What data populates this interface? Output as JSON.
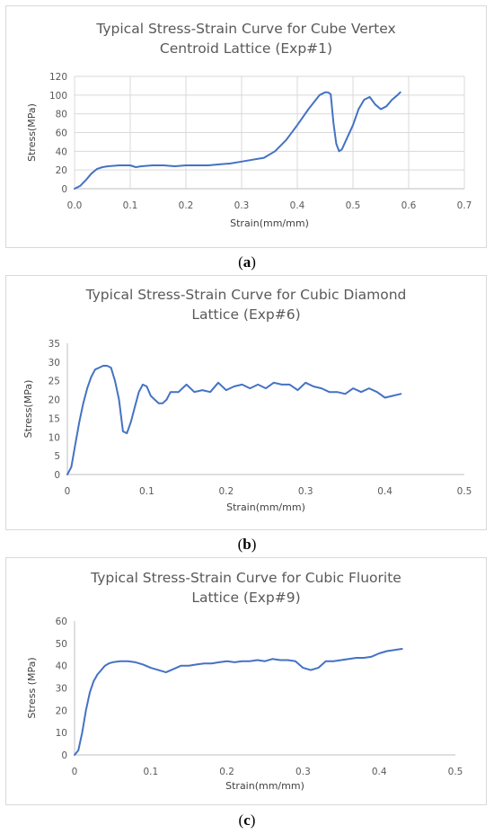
{
  "chart_data": [
    {
      "type": "line",
      "title_lines": [
        "Typical Stress-Strain Curve for Cube Vertex",
        "Centroid Lattice (Exp#1)"
      ],
      "xlabel": "Strain(mm/mm)",
      "ylabel": "Stress(MPa)",
      "xlim": [
        0,
        0.7
      ],
      "ylim": [
        0,
        120
      ],
      "xticks": [
        "0.0",
        "0.1",
        "0.2",
        "0.3",
        "0.4",
        "0.5",
        "0.6",
        "0.7"
      ],
      "yticks": [
        "0",
        "20",
        "40",
        "60",
        "80",
        "100",
        "120"
      ],
      "grid": true,
      "color": "#4472c4",
      "x": [
        0,
        0.01,
        0.02,
        0.03,
        0.04,
        0.05,
        0.06,
        0.08,
        0.1,
        0.11,
        0.12,
        0.14,
        0.16,
        0.18,
        0.2,
        0.22,
        0.24,
        0.26,
        0.28,
        0.3,
        0.32,
        0.34,
        0.36,
        0.38,
        0.4,
        0.42,
        0.44,
        0.45,
        0.455,
        0.46,
        0.465,
        0.47,
        0.475,
        0.48,
        0.49,
        0.5,
        0.51,
        0.52,
        0.53,
        0.54,
        0.55,
        0.56,
        0.57,
        0.58,
        0.585
      ],
      "y": [
        0,
        3,
        9,
        16,
        21,
        23,
        24,
        25,
        25,
        23,
        24,
        25,
        25,
        24,
        25,
        25,
        25,
        26,
        27,
        29,
        31,
        33,
        40,
        52,
        68,
        85,
        100,
        103,
        103,
        101,
        70,
        48,
        40,
        42,
        55,
        68,
        85,
        95,
        98,
        90,
        85,
        88,
        95,
        100,
        103
      ]
    },
    {
      "type": "line",
      "title_lines": [
        "Typical Stress-Strain Curve for Cubic Diamond",
        "Lattice (Exp#6)"
      ],
      "xlabel": "Strain(mm/mm)",
      "ylabel": "Stress(MPa)",
      "xlim": [
        0,
        0.5
      ],
      "ylim": [
        0,
        35
      ],
      "xticks": [
        "0",
        "0.1",
        "0.2",
        "0.3",
        "0.4",
        "0.5"
      ],
      "yticks": [
        "0",
        "5",
        "10",
        "15",
        "20",
        "25",
        "30",
        "35"
      ],
      "grid": false,
      "color": "#4472c4",
      "x": [
        0,
        0.005,
        0.01,
        0.015,
        0.02,
        0.025,
        0.03,
        0.035,
        0.04,
        0.045,
        0.05,
        0.055,
        0.06,
        0.065,
        0.07,
        0.075,
        0.08,
        0.085,
        0.09,
        0.095,
        0.1,
        0.105,
        0.11,
        0.115,
        0.12,
        0.125,
        0.13,
        0.14,
        0.15,
        0.16,
        0.17,
        0.18,
        0.19,
        0.2,
        0.21,
        0.22,
        0.23,
        0.24,
        0.25,
        0.26,
        0.27,
        0.28,
        0.29,
        0.3,
        0.31,
        0.32,
        0.33,
        0.34,
        0.35,
        0.36,
        0.37,
        0.38,
        0.39,
        0.4,
        0.41,
        0.42
      ],
      "y": [
        0,
        2,
        8,
        14,
        19,
        23,
        26,
        28,
        28.5,
        29,
        29,
        28.5,
        25,
        20,
        11.5,
        11,
        14,
        18,
        22,
        24,
        23.5,
        21,
        20,
        19,
        19,
        20,
        22,
        22,
        24,
        22,
        22.5,
        22,
        24.5,
        22.5,
        23.5,
        24,
        23,
        24,
        23,
        24.5,
        24,
        24,
        22.5,
        24.5,
        23.5,
        23,
        22,
        22,
        21.5,
        23,
        22,
        23,
        22,
        20.5,
        21,
        21.5
      ]
    },
    {
      "type": "line",
      "title_lines": [
        "Typical Stress-Strain Curve for Cubic Fluorite",
        "Lattice (Exp#9)"
      ],
      "xlabel": "Strain(mm/mm)",
      "ylabel": "Stress (MPa)",
      "xlim": [
        0,
        0.5
      ],
      "ylim": [
        0,
        60
      ],
      "xticks": [
        "0",
        "0.1",
        "0.2",
        "0.3",
        "0.4",
        "0.5"
      ],
      "yticks": [
        "0",
        "10",
        "20",
        "30",
        "40",
        "50",
        "60"
      ],
      "grid": false,
      "color": "#4472c4",
      "x": [
        0,
        0.005,
        0.01,
        0.015,
        0.02,
        0.025,
        0.03,
        0.035,
        0.04,
        0.045,
        0.05,
        0.06,
        0.07,
        0.08,
        0.09,
        0.1,
        0.11,
        0.12,
        0.13,
        0.14,
        0.15,
        0.16,
        0.17,
        0.18,
        0.19,
        0.2,
        0.21,
        0.22,
        0.23,
        0.24,
        0.25,
        0.26,
        0.27,
        0.28,
        0.29,
        0.3,
        0.31,
        0.32,
        0.33,
        0.34,
        0.35,
        0.36,
        0.37,
        0.38,
        0.39,
        0.4,
        0.41,
        0.42,
        0.43
      ],
      "y": [
        0,
        2,
        10,
        20,
        28,
        33,
        36,
        38,
        40,
        41,
        41.5,
        42,
        42,
        41.5,
        40.5,
        39,
        38,
        37,
        38.5,
        40,
        40,
        40.5,
        41,
        41,
        41.5,
        42,
        41.5,
        42,
        42,
        42.5,
        42,
        43,
        42.5,
        42.5,
        42,
        39,
        38,
        39,
        42,
        42,
        42.5,
        43,
        43.5,
        43.5,
        44,
        45.5,
        46.5,
        47,
        47.5
      ]
    }
  ],
  "captions": [
    {
      "open": "(",
      "label": "a",
      "close": ")"
    },
    {
      "open": "(",
      "label": "b",
      "close": ")"
    },
    {
      "open": "(",
      "label": "c",
      "close": ")"
    }
  ]
}
